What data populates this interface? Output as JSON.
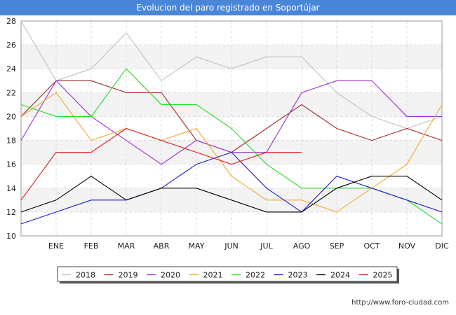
{
  "header": {
    "title": "Evolucion del paro registrado en Soportújar"
  },
  "footer": {
    "url": "http://www.foro-ciudad.com"
  },
  "chart_data": {
    "type": "line",
    "title": "Evolucion del paro registrado en Soportújar",
    "xlabel": "",
    "ylabel": "",
    "categories": [
      "",
      "ENE",
      "FEB",
      "MAR",
      "ABR",
      "MAY",
      "JUN",
      "JUL",
      "AGO",
      "SEP",
      "OCT",
      "NOV",
      "DIC"
    ],
    "ylim": [
      10,
      28
    ],
    "yticks": [
      10,
      12,
      14,
      16,
      18,
      20,
      22,
      24,
      26,
      28
    ],
    "grid": true,
    "legend_position": "bottom",
    "series": [
      {
        "name": "2018",
        "color": "#c0c0c0",
        "values": [
          28,
          23,
          24,
          27,
          23,
          25,
          24,
          25,
          25,
          22,
          20,
          19,
          20
        ]
      },
      {
        "name": "2019",
        "color": "#a52a2a",
        "values": [
          20,
          23,
          23,
          22,
          22,
          18,
          17,
          19,
          21,
          19,
          18,
          19,
          18
        ]
      },
      {
        "name": "2020",
        "color": "#9a32cd",
        "values": [
          18,
          23,
          20,
          18,
          16,
          18,
          17,
          17,
          22,
          23,
          23,
          20,
          20
        ]
      },
      {
        "name": "2021",
        "color": "#f0a830",
        "values": [
          20,
          22,
          18,
          19,
          18,
          19,
          15,
          13,
          13,
          12,
          14,
          16,
          21
        ]
      },
      {
        "name": "2022",
        "color": "#22dd22",
        "values": [
          21,
          20,
          20,
          24,
          21,
          21,
          19,
          16,
          14,
          14,
          14,
          13,
          11
        ]
      },
      {
        "name": "2023",
        "color": "#1a1acd",
        "values": [
          11,
          12,
          13,
          13,
          14,
          16,
          17,
          14,
          12,
          15,
          14,
          13,
          12
        ]
      },
      {
        "name": "2024",
        "color": "#000000",
        "values": [
          12,
          13,
          15,
          13,
          14,
          14,
          13,
          12,
          12,
          14,
          15,
          15,
          13
        ]
      },
      {
        "name": "2025",
        "color": "#e41a1a",
        "values": [
          13,
          17,
          17,
          19,
          18,
          17,
          16,
          17,
          17,
          null,
          null,
          null,
          null
        ]
      }
    ]
  }
}
